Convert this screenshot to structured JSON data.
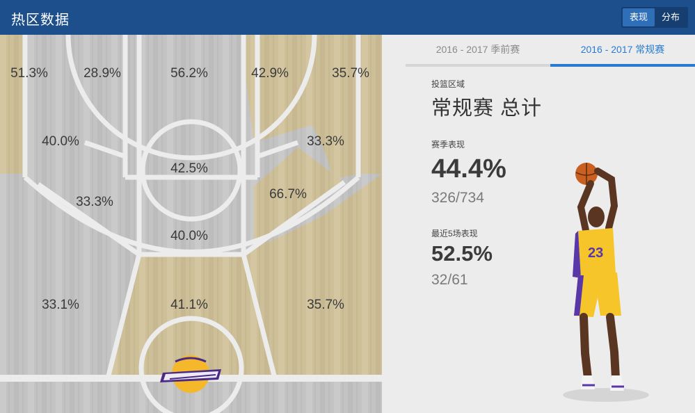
{
  "header": {
    "title": "热区数据",
    "toggle": [
      {
        "label": "表现",
        "active": true
      },
      {
        "label": "分布",
        "active": false
      }
    ]
  },
  "court": {
    "zones": [
      {
        "id": "left-corner-three",
        "pct": "51.3%"
      },
      {
        "id": "left-wing-three",
        "pct": "28.9%"
      },
      {
        "id": "top-key-three",
        "pct": "56.2%"
      },
      {
        "id": "right-wing-three",
        "pct": "42.9%"
      },
      {
        "id": "right-corner-three",
        "pct": "35.7%"
      },
      {
        "id": "left-baseline-mid",
        "pct": "40.0%"
      },
      {
        "id": "right-baseline-mid",
        "pct": "33.3%"
      },
      {
        "id": "free-throw",
        "pct": "42.5%"
      },
      {
        "id": "left-elbow-mid",
        "pct": "33.3%"
      },
      {
        "id": "right-elbow-mid",
        "pct": "66.7%"
      },
      {
        "id": "paint-non-ra",
        "pct": "40.0%"
      },
      {
        "id": "left-short",
        "pct": "33.1%"
      },
      {
        "id": "restricted-area",
        "pct": "41.1%"
      },
      {
        "id": "right-short",
        "pct": "35.7%"
      }
    ],
    "team_logo": "lakers-logo",
    "colors": {
      "hot": "#cdbf98",
      "cold": "#c3c3c3",
      "line": "#ececec"
    }
  },
  "panel": {
    "tabs": [
      {
        "label": "2016 - 2017 季前赛",
        "active": false
      },
      {
        "label": "2016 - 2017 常规赛",
        "active": true
      }
    ],
    "zone_caption": "投篮区域",
    "zone_name": "常规赛 总计",
    "season_caption": "赛季表现",
    "season_pct": "44.4%",
    "season_ratio": "326/734",
    "recent_caption": "最近5场表现",
    "recent_pct": "52.5%",
    "recent_ratio": "32/61",
    "accent": "#2a7bd0"
  }
}
